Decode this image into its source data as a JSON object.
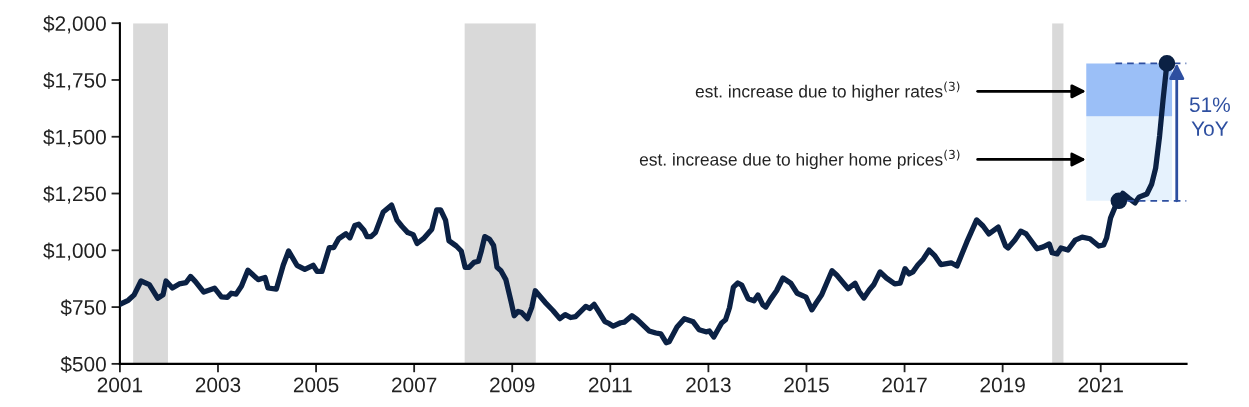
{
  "chart_data": {
    "type": "line",
    "x": [
      2001.0,
      2001.17,
      2001.29,
      2001.43,
      2001.6,
      2001.77,
      2001.88,
      2001.94,
      2002.07,
      2002.21,
      2002.35,
      2002.44,
      2002.54,
      2002.71,
      2002.93,
      2003.07,
      2003.19,
      2003.27,
      2003.37,
      2003.48,
      2003.61,
      2003.82,
      2003.96,
      2004.02,
      2004.19,
      2004.33,
      2004.44,
      2004.61,
      2004.77,
      2004.94,
      2005.02,
      2005.12,
      2005.27,
      2005.36,
      2005.46,
      2005.61,
      2005.69,
      2005.79,
      2005.87,
      2005.98,
      2006.04,
      2006.12,
      2006.21,
      2006.37,
      2006.54,
      2006.65,
      2006.75,
      2006.87,
      2006.98,
      2007.06,
      2007.19,
      2007.36,
      2007.46,
      2007.54,
      2007.64,
      2007.71,
      2007.86,
      2007.96,
      2008.04,
      2008.12,
      2008.22,
      2008.31,
      2008.37,
      2008.44,
      2008.54,
      2008.62,
      2008.69,
      2008.77,
      2008.87,
      2008.98,
      2009.04,
      2009.12,
      2009.19,
      2009.31,
      2009.4,
      2009.47,
      2009.67,
      2009.83,
      2009.97,
      2010.08,
      2010.19,
      2010.29,
      2010.5,
      2010.58,
      2010.67,
      2010.75,
      2010.89,
      2010.98,
      2011.06,
      2011.21,
      2011.29,
      2011.44,
      2011.54,
      2011.79,
      2011.93,
      2012.03,
      2012.14,
      2012.2,
      2012.36,
      2012.51,
      2012.69,
      2012.81,
      2012.95,
      2013.02,
      2013.11,
      2013.27,
      2013.35,
      2013.43,
      2013.51,
      2013.6,
      2013.68,
      2013.81,
      2013.93,
      2014.01,
      2014.11,
      2014.17,
      2014.27,
      2014.39,
      2014.52,
      2014.68,
      2014.81,
      2014.99,
      2015.11,
      2015.2,
      2015.31,
      2015.52,
      2015.62,
      2015.85,
      2015.99,
      2016.07,
      2016.17,
      2016.28,
      2016.37,
      2016.5,
      2016.63,
      2016.8,
      2016.91,
      2017.01,
      2017.09,
      2017.17,
      2017.27,
      2017.38,
      2017.5,
      2017.62,
      2017.74,
      2017.95,
      2018.07,
      2018.27,
      2018.47,
      2018.6,
      2018.72,
      2018.91,
      2019.06,
      2019.11,
      2019.25,
      2019.37,
      2019.48,
      2019.7,
      2019.83,
      2019.95,
      2020.01,
      2020.11,
      2020.19,
      2020.33,
      2020.48,
      2020.62,
      2020.78,
      2020.96,
      2021.06,
      2021.12,
      2021.2,
      2021.31,
      2021.45,
      2021.57,
      2021.7,
      2021.78,
      2021.94,
      2022.04,
      2022.12,
      2022.2,
      2022.27,
      2022.35
    ],
    "series": [
      {
        "color": "#0b2144",
        "values": [
          762,
          780,
          804,
          865,
          849,
          789,
          804,
          865,
          834,
          852,
          858,
          885,
          862,
          816,
          833,
          795,
          793,
          811,
          807,
          843,
          912,
          871,
          880,
          834,
          829,
          934,
          997,
          934,
          916,
          934,
          907,
          907,
          1012,
          1012,
          1051,
          1073,
          1055,
          1109,
          1115,
          1087,
          1060,
          1060,
          1078,
          1169,
          1199,
          1133,
          1106,
          1078,
          1069,
          1030,
          1051,
          1093,
          1178,
          1178,
          1133,
          1042,
          1019,
          997,
          925,
          925,
          947,
          952,
          997,
          1060,
          1048,
          1021,
          925,
          910,
          871,
          771,
          712,
          731,
          726,
          699,
          750,
          822,
          771,
          735,
          699,
          717,
          704,
          708,
          753,
          744,
          762,
          735,
          686,
          677,
          666,
          681,
          684,
          712,
          697,
          645,
          636,
          632,
          593,
          597,
          662,
          699,
          685,
          650,
          641,
          645,
          618,
          680,
          694,
          747,
          838,
          856,
          847,
          787,
          778,
          803,
          760,
          750,
          785,
          822,
          878,
          855,
          811,
          794,
          738,
          769,
          804,
          910,
          890,
          831,
          855,
          820,
          790,
          825,
          848,
          905,
          878,
          852,
          855,
          919,
          896,
          905,
          935,
          961,
          1001,
          975,
          937,
          945,
          931,
          1037,
          1134,
          1107,
          1072,
          1102,
          1019,
          1010,
          1045,
          1084,
          1072,
          1007,
          1015,
          1028,
          989,
          984,
          1010,
          1001,
          1045,
          1058,
          1051,
          1019,
          1024,
          1054,
          1142,
          1200,
          1251,
          1230,
          1209,
          1234,
          1248,
          1292,
          1362,
          1503,
          1661,
          1823
        ]
      },
      {
        "type": "scatter",
        "color": "#0b2144",
        "marker": "circle",
        "x": [
          2021.37,
          2022.35
        ],
        "values": [
          1218,
          1823
        ]
      },
      {
        "type": "line",
        "color": "#2e4fa0",
        "line_style": "dashed",
        "x": [
          2021.3,
          2022.75
        ],
        "values": [
          1218,
          1218
        ]
      },
      {
        "type": "line",
        "color": "#2e4fa0",
        "line_style": "dashed",
        "x": [
          2021.3,
          2022.75
        ],
        "values": [
          1823,
          1823
        ]
      },
      {
        "type": "bar",
        "color": "#e6f2fd",
        "x": [
          2021.58
        ],
        "base": [
          1218
        ],
        "values": [
          372
        ]
      },
      {
        "type": "bar",
        "color": "#9bbff7",
        "x": [
          2021.58
        ],
        "base": [
          1590
        ],
        "values": [
          233
        ]
      }
    ],
    "xlim": [
      2001,
      2022.75
    ],
    "xticks": [
      2001,
      2003,
      2005,
      2007,
      2009,
      2011,
      2013,
      2015,
      2017,
      2019,
      2021
    ],
    "ylim": [
      500,
      2000
    ],
    "yticks": [
      {
        "value": 500,
        "label": "$500"
      },
      {
        "value": 750,
        "label": "$750"
      },
      {
        "value": 1000,
        "label": "$1,000"
      },
      {
        "value": 1250,
        "label": "$1,250"
      },
      {
        "value": 1500,
        "label": "$1,500"
      },
      {
        "value": 1750,
        "label": "$1,750"
      },
      {
        "value": 2000,
        "label": "$2,000"
      }
    ],
    "bands": [
      {
        "axis": "x",
        "from": 2001.27,
        "to": 2001.98,
        "color": "#d9d9d9"
      },
      {
        "axis": "x",
        "from": 2008.03,
        "to": 2009.48,
        "color": "#d9d9d9"
      },
      {
        "axis": "x",
        "from": 2020.01,
        "to": 2020.24,
        "color": "#d9d9d9"
      }
    ],
    "annotations": [
      {
        "text": "est. increase due to higher rates$^{(3)}$",
        "x": 2020.7,
        "y": 1700
      },
      {
        "text": "est. increase due to higher home prices$^{(3)}$",
        "x": 2020.7,
        "y": 1400
      },
      "51%\nYoY"
    ],
    "grid": false,
    "legend": false,
    "marker": "none",
    "line_style": "solid"
  }
}
